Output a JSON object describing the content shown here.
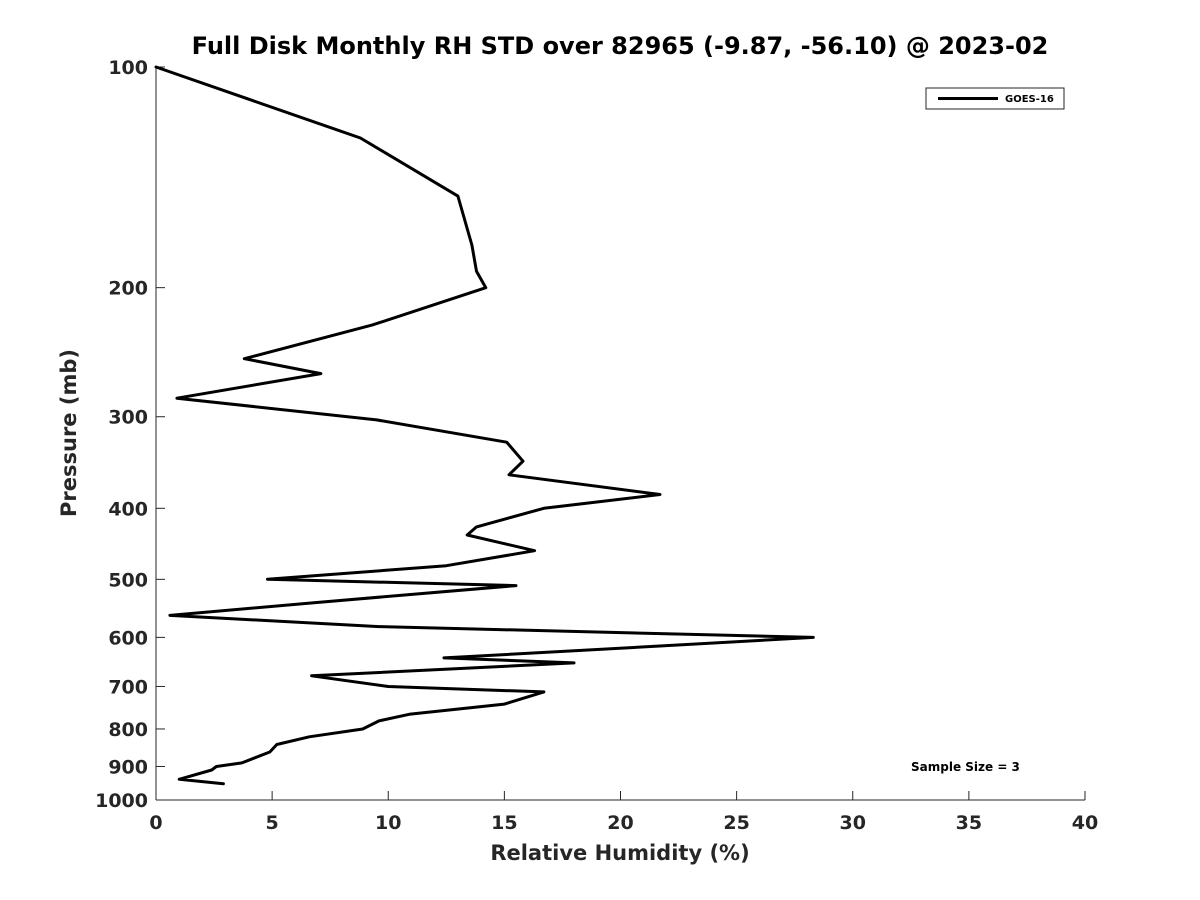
{
  "chart_data": {
    "type": "line",
    "title": "Full Disk Monthly RH STD over 82965 (-9.87, -56.10) @ 2023-02",
    "xlabel": "Relative Humidity (%)",
    "ylabel": "Pressure (mb)",
    "xlim": [
      0,
      40
    ],
    "ylim": [
      100,
      1000
    ],
    "y_scale": "log",
    "y_reversed": true,
    "x_ticks": [
      "0",
      "5",
      "10",
      "15",
      "20",
      "25",
      "30",
      "35",
      "40"
    ],
    "y_ticks": [
      "100",
      "200",
      "300",
      "400",
      "500",
      "600",
      "700",
      "800",
      "900",
      "1000"
    ],
    "grid": false,
    "legend_position": "top-right",
    "series": [
      {
        "name": "GOES-16",
        "color": "#000000",
        "points": [
          [
            0.0,
            100
          ],
          [
            8.8,
            125
          ],
          [
            13.0,
            150
          ],
          [
            13.6,
            175
          ],
          [
            13.8,
            190
          ],
          [
            14.2,
            200
          ],
          [
            9.3,
            225
          ],
          [
            3.8,
            250
          ],
          [
            7.1,
            262
          ],
          [
            0.9,
            283
          ],
          [
            9.5,
            303
          ],
          [
            15.1,
            325
          ],
          [
            15.8,
            345
          ],
          [
            15.2,
            360
          ],
          [
            21.7,
            383
          ],
          [
            16.7,
            400
          ],
          [
            13.8,
            424
          ],
          [
            13.4,
            435
          ],
          [
            16.3,
            457
          ],
          [
            12.5,
            479
          ],
          [
            4.8,
            500
          ],
          [
            15.5,
            510
          ],
          [
            6.8,
            538
          ],
          [
            0.6,
            560
          ],
          [
            9.6,
            580
          ],
          [
            28.3,
            600
          ],
          [
            21.5,
            617
          ],
          [
            12.4,
            640
          ],
          [
            18.0,
            650
          ],
          [
            6.7,
            677
          ],
          [
            10.0,
            700
          ],
          [
            16.7,
            712
          ],
          [
            15.0,
            740
          ],
          [
            10.9,
            764
          ],
          [
            9.6,
            780
          ],
          [
            8.9,
            800
          ],
          [
            6.6,
            820
          ],
          [
            5.2,
            840
          ],
          [
            4.9,
            860
          ],
          [
            3.7,
            890
          ],
          [
            2.6,
            900
          ],
          [
            2.4,
            910
          ],
          [
            1.0,
            937
          ],
          [
            2.9,
            950
          ]
        ]
      }
    ],
    "annotations": [
      "Sample Size = 3"
    ]
  }
}
